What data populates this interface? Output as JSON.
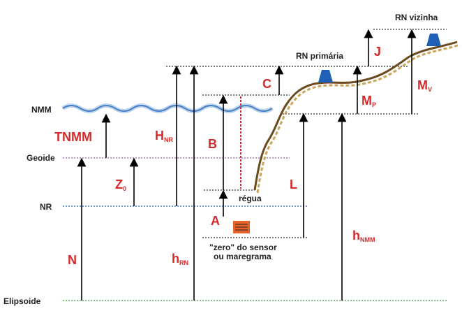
{
  "levels": {
    "nmm": "NMM",
    "geoide": "Geoide",
    "nr": "NR",
    "elipsoide": "Elipsoide"
  },
  "markers": {
    "rn_primaria": "RN primária",
    "rn_vizinha": "RN vizinha"
  },
  "notes": {
    "regua": "régua",
    "sensor_1": "\"zero\" do sensor",
    "sensor_2": "ou maregrama"
  },
  "quantities": {
    "tnmm": {
      "main": "TNMM"
    },
    "hnr": {
      "main": "H",
      "sub": "NR"
    },
    "b": {
      "main": "B"
    },
    "z0": {
      "main": "Z",
      "sub": "0"
    },
    "l": {
      "main": "L"
    },
    "a": {
      "main": "A"
    },
    "n": {
      "main": "N"
    },
    "hrn": {
      "main": "h",
      "sub": "RN"
    },
    "hnmm": {
      "main": "h",
      "sub": "NMM"
    },
    "c": {
      "main": "C"
    },
    "mp": {
      "main": "M",
      "sub": "P"
    },
    "mv": {
      "main": "M",
      "sub": "V"
    },
    "j": {
      "main": "J"
    }
  }
}
